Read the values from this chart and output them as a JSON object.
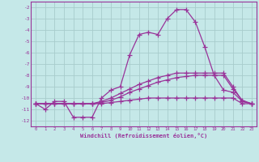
{
  "xlabel": "Windchill (Refroidissement éolien,°C)",
  "xlim": [
    -0.5,
    23.5
  ],
  "ylim": [
    -12.5,
    -1.5
  ],
  "yticks": [
    -12,
    -11,
    -10,
    -9,
    -8,
    -7,
    -6,
    -5,
    -4,
    -3,
    -2
  ],
  "xticks": [
    0,
    1,
    2,
    3,
    4,
    5,
    6,
    7,
    8,
    9,
    10,
    11,
    12,
    13,
    14,
    15,
    16,
    17,
    18,
    19,
    20,
    21,
    22,
    23
  ],
  "background_color": "#c5e8e8",
  "grid_color": "#a8cccc",
  "line_color": "#993399",
  "line1_x": [
    0,
    1,
    2,
    3,
    4,
    5,
    6,
    7,
    8,
    9,
    10,
    11,
    12,
    13,
    14,
    15,
    16,
    17,
    18,
    19,
    20,
    21,
    22,
    23
  ],
  "line1_y": [
    -10.5,
    -11.0,
    -10.3,
    -10.3,
    -11.7,
    -11.7,
    -11.7,
    -10.0,
    -9.3,
    -9.0,
    -6.2,
    -4.4,
    -4.2,
    -4.4,
    -3.0,
    -2.2,
    -2.2,
    -3.3,
    -5.5,
    -8.0,
    -9.3,
    -9.5,
    -10.3,
    -10.5
  ],
  "line2_x": [
    0,
    1,
    2,
    3,
    4,
    5,
    6,
    7,
    8,
    9,
    10,
    11,
    12,
    13,
    14,
    15,
    16,
    17,
    18,
    19,
    20,
    21,
    22,
    23
  ],
  "line2_y": [
    -10.5,
    -10.5,
    -10.5,
    -10.5,
    -10.5,
    -10.5,
    -10.5,
    -10.5,
    -10.4,
    -10.3,
    -10.2,
    -10.1,
    -10.0,
    -10.0,
    -10.0,
    -10.0,
    -10.0,
    -10.0,
    -10.0,
    -10.0,
    -10.0,
    -10.0,
    -10.5,
    -10.5
  ],
  "line3_x": [
    0,
    1,
    2,
    3,
    4,
    5,
    6,
    7,
    8,
    9,
    10,
    11,
    12,
    13,
    14,
    15,
    16,
    17,
    18,
    19,
    20,
    21,
    22,
    23
  ],
  "line3_y": [
    -10.5,
    -10.5,
    -10.5,
    -10.5,
    -10.5,
    -10.5,
    -10.5,
    -10.3,
    -10.0,
    -9.6,
    -9.2,
    -8.8,
    -8.5,
    -8.2,
    -8.0,
    -7.8,
    -7.8,
    -7.8,
    -7.8,
    -7.8,
    -7.8,
    -9.0,
    -10.3,
    -10.5
  ],
  "line4_x": [
    0,
    1,
    2,
    3,
    4,
    5,
    6,
    7,
    8,
    9,
    10,
    11,
    12,
    13,
    14,
    15,
    16,
    17,
    18,
    19,
    20,
    21,
    22,
    23
  ],
  "line4_y": [
    -10.5,
    -10.5,
    -10.5,
    -10.5,
    -10.5,
    -10.5,
    -10.5,
    -10.4,
    -10.2,
    -9.9,
    -9.5,
    -9.2,
    -8.9,
    -8.6,
    -8.4,
    -8.2,
    -8.1,
    -8.0,
    -8.0,
    -8.0,
    -8.0,
    -9.2,
    -10.2,
    -10.5
  ]
}
